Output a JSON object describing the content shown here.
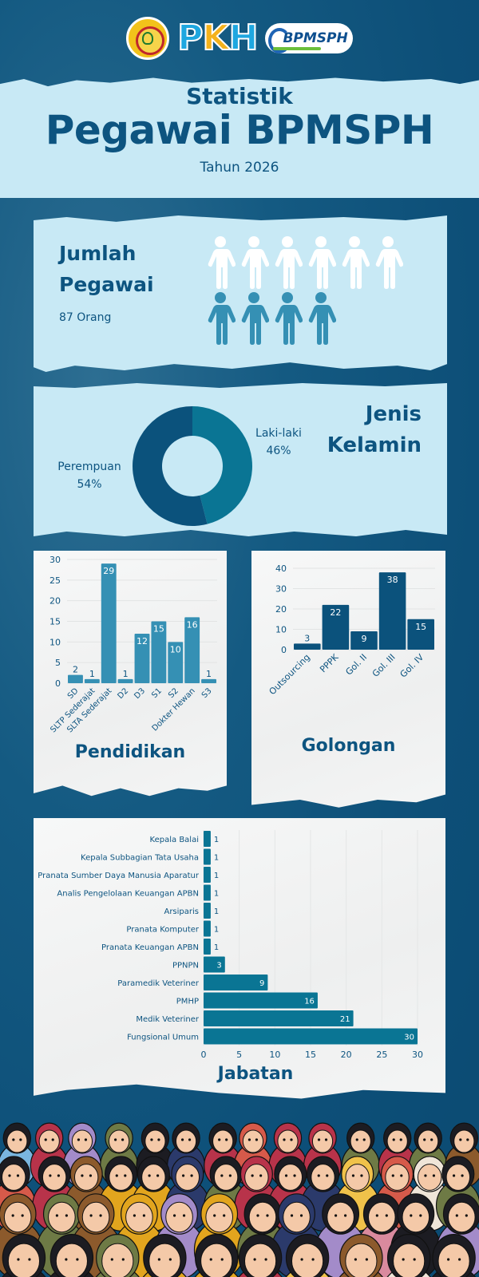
{
  "header": {
    "logos": [
      "ministry-seal-logo",
      "PKH",
      "BPMSPH"
    ],
    "pkh_text": [
      "P",
      "K",
      "H"
    ],
    "bpmsph_text": "BPMSPH"
  },
  "banner": {
    "kicker": "Statistik",
    "title": "Pegawai BPMSPH",
    "subtitle": "Tahun 2026"
  },
  "jumlah": {
    "title_line1": "Jumlah",
    "title_line2": "Pegawai",
    "count": "87 Orang",
    "icons_white": 6,
    "icons_blue": 4,
    "colors": {
      "white": "#ffffff",
      "blue": "#3590b4"
    }
  },
  "gender": {
    "title_line1": "Jenis",
    "title_line2": "Kelamin",
    "female_label": "Perempuan",
    "female_pct": "54%",
    "male_label": "Laki-laki",
    "male_pct": "46%",
    "colors": {
      "female": "#0b527c",
      "male": "#0a7594"
    }
  },
  "pendidikan": {
    "title": "Pendidikan"
  },
  "golongan": {
    "title": "Golongan"
  },
  "jabatan": {
    "title": "Jabatan"
  },
  "colors": {
    "background": "#0d4f78",
    "panel_light": "#c8e9f5",
    "text_dark": "#0d5480",
    "bar_pendidikan": "#3590b4",
    "bar_golongan": "#0b527c",
    "bar_jabatan": "#0a7594"
  },
  "chart_data": [
    {
      "type": "pie",
      "title": "Jenis Kelamin",
      "categories": [
        "Perempuan",
        "Laki-laki"
      ],
      "values": [
        54,
        46
      ],
      "unit": "%",
      "donut": true
    },
    {
      "type": "bar",
      "title": "Pendidikan",
      "categories": [
        "SD",
        "SLTP Sederajat",
        "SLTA Sederajat",
        "D2",
        "D3",
        "S1",
        "S2",
        "Dokter Hewan",
        "S3"
      ],
      "values": [
        2,
        1,
        29,
        1,
        12,
        15,
        10,
        16,
        1
      ],
      "ylim": [
        0,
        30
      ],
      "yticks": [
        0,
        5,
        10,
        15,
        20,
        25,
        30
      ],
      "xlabel": "",
      "ylabel": "",
      "grid": true,
      "data_labels": true
    },
    {
      "type": "bar",
      "title": "Golongan",
      "categories": [
        "Outsourcing",
        "PPPK",
        "Gol. II",
        "Gol. III",
        "Gol. IV"
      ],
      "values": [
        3,
        22,
        9,
        38,
        15
      ],
      "ylim": [
        0,
        40
      ],
      "yticks": [
        0,
        10,
        20,
        30,
        40
      ],
      "xlabel": "",
      "ylabel": "",
      "grid": true,
      "data_labels": true
    },
    {
      "type": "bar",
      "orientation": "horizontal",
      "title": "Jabatan",
      "categories": [
        "Kepala Balai",
        "Kepala Subbagian Tata Usaha",
        "Pranata Sumber Daya Manusia Aparatur",
        "Analis Pengelolaan Keuangan APBN",
        "Arsiparis",
        "Pranata Komputer",
        "Pranata Keuangan APBN",
        "PPNPN",
        "Paramedik Veteriner",
        "PMHP",
        "Medik Veteriner",
        "Fungsional Umum"
      ],
      "values": [
        1,
        1,
        1,
        1,
        1,
        1,
        1,
        3,
        9,
        16,
        21,
        30
      ],
      "xlim": [
        0,
        30
      ],
      "xticks": [
        0,
        5,
        10,
        15,
        20,
        25,
        30
      ],
      "xlabel": "",
      "ylabel": "",
      "grid": true,
      "data_labels": true
    }
  ]
}
